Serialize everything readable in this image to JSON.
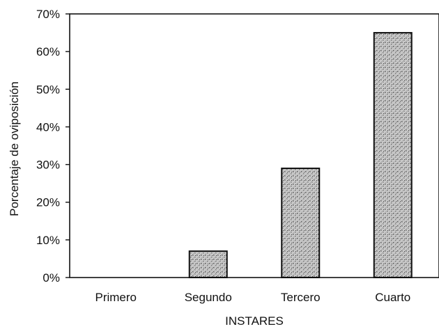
{
  "chart_data": {
    "type": "bar",
    "categories": [
      "Primero",
      "Segundo",
      "Tercero",
      "Cuarto"
    ],
    "values": [
      0,
      7,
      29,
      65
    ],
    "y_tick_labels": [
      "0%",
      "10%",
      "20%",
      "30%",
      "40%",
      "50%",
      "60%",
      "70%"
    ],
    "ylim": [
      0,
      70
    ],
    "xlabel": "INSTARES",
    "ylabel": "Porcentaje de oviposición",
    "grid": false,
    "legend": "none",
    "colors": {
      "frame": "#111111",
      "bar_fill": "#b5b5b5"
    }
  }
}
